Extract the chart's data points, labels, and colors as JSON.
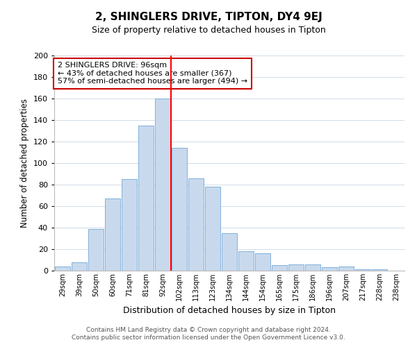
{
  "title": "2, SHINGLERS DRIVE, TIPTON, DY4 9EJ",
  "subtitle": "Size of property relative to detached houses in Tipton",
  "xlabel": "Distribution of detached houses by size in Tipton",
  "ylabel": "Number of detached properties",
  "bin_labels": [
    "29sqm",
    "39sqm",
    "50sqm",
    "60sqm",
    "71sqm",
    "81sqm",
    "92sqm",
    "102sqm",
    "113sqm",
    "123sqm",
    "134sqm",
    "144sqm",
    "154sqm",
    "165sqm",
    "175sqm",
    "186sqm",
    "196sqm",
    "207sqm",
    "217sqm",
    "228sqm",
    "238sqm"
  ],
  "bar_heights": [
    4,
    8,
    39,
    67,
    85,
    135,
    160,
    114,
    86,
    78,
    35,
    18,
    16,
    5,
    6,
    6,
    3,
    4,
    1,
    1,
    0
  ],
  "bar_color": "#c9d9ed",
  "bar_edge_color": "#6fa8d6",
  "reference_line_index": 6,
  "reference_line_color": "red",
  "annotation_title": "2 SHINGLERS DRIVE: 96sqm",
  "annotation_line1": "← 43% of detached houses are smaller (367)",
  "annotation_line2": "57% of semi-detached houses are larger (494) →",
  "annotation_box_facecolor": "#ffffff",
  "annotation_box_edgecolor": "#cc0000",
  "ylim": [
    0,
    200
  ],
  "yticks": [
    0,
    20,
    40,
    60,
    80,
    100,
    120,
    140,
    160,
    180,
    200
  ],
  "footer_line1": "Contains HM Land Registry data © Crown copyright and database right 2024.",
  "footer_line2": "Contains public sector information licensed under the Open Government Licence v3.0.",
  "background_color": "#ffffff",
  "grid_color": "#d0dce8"
}
